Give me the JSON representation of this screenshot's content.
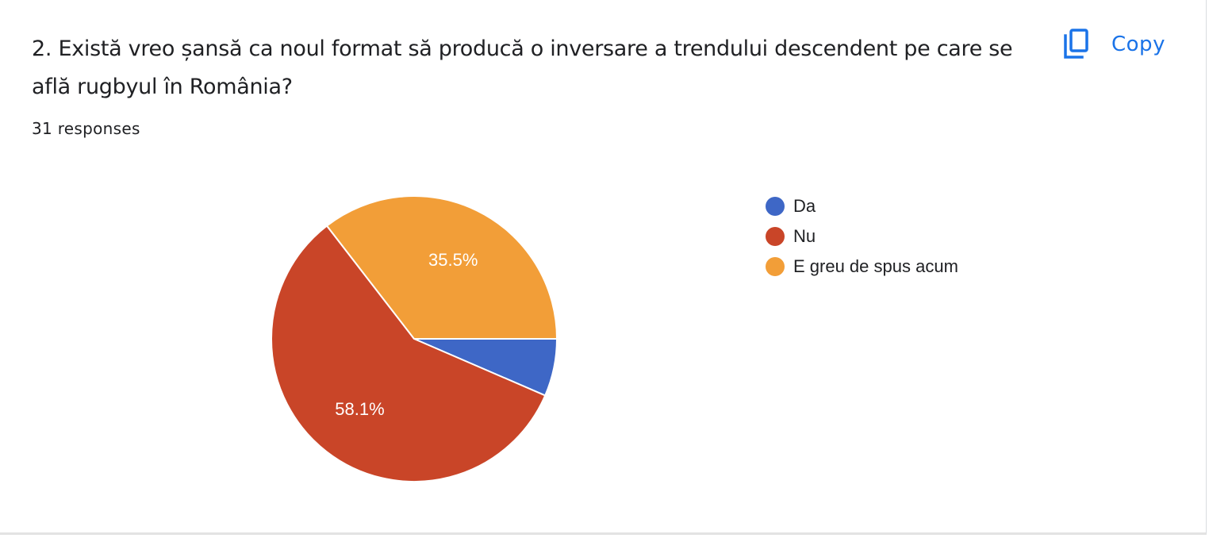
{
  "question": {
    "title": "2. Există vreo șansă ca noul format să producă o inversare a trendului descendent pe care se află rugbyul în România?",
    "responses": "31 responses"
  },
  "toolbar": {
    "copy_label": "Copy",
    "copy_icon": "copy-icon"
  },
  "colors": {
    "accent": "#1a73e8",
    "da": "#3e67c6",
    "nu": "#c94528",
    "e_greu": "#f29e38"
  },
  "chart_data": {
    "type": "pie",
    "title": "",
    "legend_position": "right",
    "total_responses": 31,
    "slices": [
      {
        "label": "Da",
        "value": 6.5,
        "count": 2,
        "color": "#3e67c6",
        "display_label": ""
      },
      {
        "label": "Nu",
        "value": 58.1,
        "count": 18,
        "color": "#c94528",
        "display_label": "58.1%"
      },
      {
        "label": "E greu de spus acum",
        "value": 35.5,
        "count": 11,
        "color": "#f29e38",
        "display_label": "35.5%"
      }
    ]
  }
}
